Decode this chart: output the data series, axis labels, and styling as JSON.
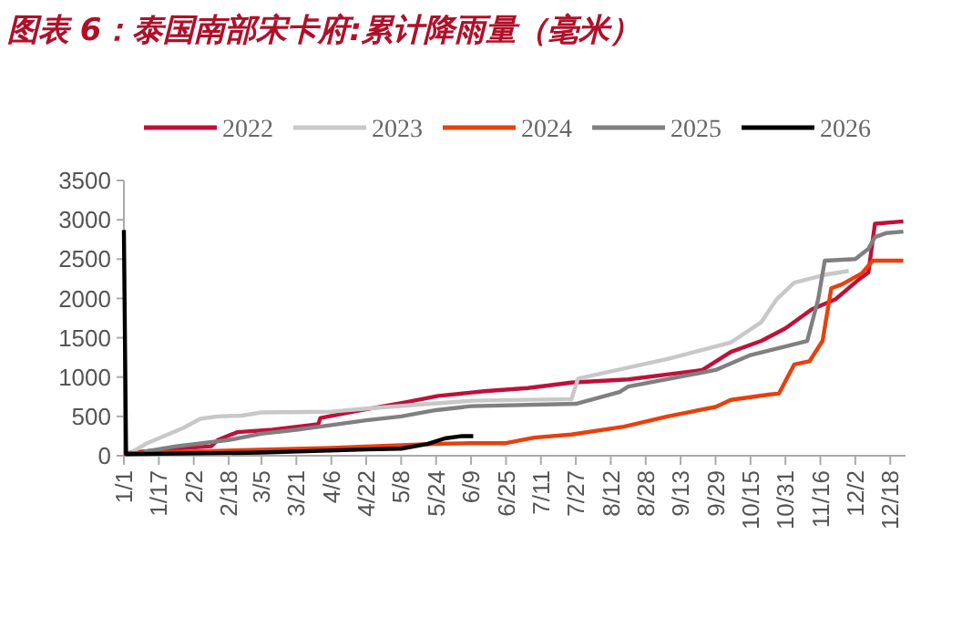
{
  "chart_data": {
    "type": "line",
    "title": "图表 6：泰国南部宋卡府:累计降雨量（毫米）",
    "legend": "top",
    "grid": false,
    "line_style": "solid",
    "xlim": [
      "--01-01",
      "--12-25"
    ],
    "xticks": [
      {
        "value": "--01-01",
        "label": "1/1"
      },
      {
        "value": "--01-17",
        "label": "1/17"
      },
      {
        "value": "--02-02",
        "label": "2/2"
      },
      {
        "value": "--02-18",
        "label": "2/18"
      },
      {
        "value": "--03-05",
        "label": "3/5"
      },
      {
        "value": "--03-21",
        "label": "3/21"
      },
      {
        "value": "--04-06",
        "label": "4/6"
      },
      {
        "value": "--04-22",
        "label": "4/22"
      },
      {
        "value": "--05-08",
        "label": "5/8"
      },
      {
        "value": "--05-24",
        "label": "5/24"
      },
      {
        "value": "--06-09",
        "label": "6/9"
      },
      {
        "value": "--06-25",
        "label": "6/25"
      },
      {
        "value": "--07-11",
        "label": "7/11"
      },
      {
        "value": "--07-27",
        "label": "7/27"
      },
      {
        "value": "--08-12",
        "label": "8/12"
      },
      {
        "value": "--08-28",
        "label": "8/28"
      },
      {
        "value": "--09-13",
        "label": "9/13"
      },
      {
        "value": "--09-29",
        "label": "9/29"
      },
      {
        "value": "--10-15",
        "label": "10/15"
      },
      {
        "value": "--10-31",
        "label": "10/31"
      },
      {
        "value": "--11-16",
        "label": "11/16"
      },
      {
        "value": "--12-02",
        "label": "12/2"
      },
      {
        "value": "--12-18",
        "label": "12/18"
      }
    ],
    "ylim": [
      0,
      3500
    ],
    "yticks": [
      0,
      500,
      1000,
      1500,
      2000,
      2500,
      3000,
      3500
    ],
    "series": [
      {
        "name": "2022",
        "color": "#c0103a",
        "x": [
          "--01-01",
          "--01-20",
          "--02-10",
          "--02-13",
          "--02-22",
          "--03-10",
          "--03-25",
          "--03-31",
          "--04-01",
          "--04-20",
          "--05-10",
          "--05-25",
          "--06-15",
          "--07-05",
          "--07-25",
          "--08-20",
          "--09-23",
          "--10-06",
          "--10-20",
          "--10-31",
          "--11-12",
          "--11-23",
          "--12-04",
          "--12-08",
          "--12-11",
          "--12-24"
        ],
        "values": [
          30,
          80,
          120,
          200,
          300,
          330,
          380,
          400,
          480,
          580,
          680,
          760,
          820,
          860,
          930,
          970,
          1090,
          1320,
          1460,
          1620,
          1860,
          1990,
          2250,
          2330,
          2950,
          2980
        ]
      },
      {
        "name": "2023",
        "color": "#c8c8c8",
        "x": [
          "--01-05",
          "--01-11",
          "--01-28",
          "--02-05",
          "--02-13",
          "--02-24",
          "--03-05",
          "--04-06",
          "--04-22",
          "--06-10",
          "--07-25",
          "--07-28",
          "--09-07",
          "--10-06",
          "--10-20",
          "--10-27",
          "--11-04",
          "--11-18",
          "--11-29"
        ],
        "values": [
          50,
          150,
          350,
          470,
          500,
          510,
          550,
          560,
          600,
          700,
          720,
          980,
          1230,
          1440,
          1700,
          1990,
          2200,
          2300,
          2350
        ]
      },
      {
        "name": "2024",
        "color": "#e8400c",
        "x": [
          "--01-01",
          "--04-06",
          "--05-24",
          "--06-09",
          "--06-25",
          "--07-08",
          "--07-25",
          "--08-18",
          "--09-07",
          "--09-29",
          "--10-06",
          "--10-24",
          "--10-28",
          "--11-04",
          "--11-11",
          "--11-17",
          "--11-21",
          "--11-26",
          "--12-05",
          "--12-10",
          "--12-24"
        ],
        "values": [
          30,
          100,
          150,
          160,
          160,
          230,
          270,
          370,
          500,
          620,
          710,
          780,
          790,
          1160,
          1200,
          1460,
          2130,
          2180,
          2320,
          2480,
          2480
        ]
      },
      {
        "name": "2025",
        "color": "#808080",
        "x": [
          "--01-10",
          "--01-25",
          "--02-18",
          "--03-05",
          "--03-21",
          "--04-06",
          "--04-22",
          "--05-08",
          "--05-24",
          "--06-09",
          "--07-27",
          "--08-16",
          "--08-20",
          "--09-29",
          "--10-15",
          "--10-31",
          "--11-10",
          "--11-15",
          "--11-18",
          "--12-02",
          "--12-08",
          "--12-11",
          "--12-16",
          "--12-24"
        ],
        "values": [
          50,
          120,
          200,
          280,
          330,
          390,
          450,
          500,
          580,
          630,
          660,
          810,
          880,
          1090,
          1280,
          1390,
          1460,
          1990,
          2480,
          2500,
          2630,
          2780,
          2830,
          2850
        ]
      },
      {
        "name": "2026",
        "color": "#000000",
        "x": [
          "--01-01",
          "--01-02",
          "--03-05",
          "--04-22",
          "--05-08",
          "--05-20",
          "--05-28",
          "--06-05",
          "--06-10"
        ],
        "values": [
          2870,
          20,
          40,
          80,
          90,
          150,
          220,
          250,
          250
        ]
      }
    ]
  }
}
